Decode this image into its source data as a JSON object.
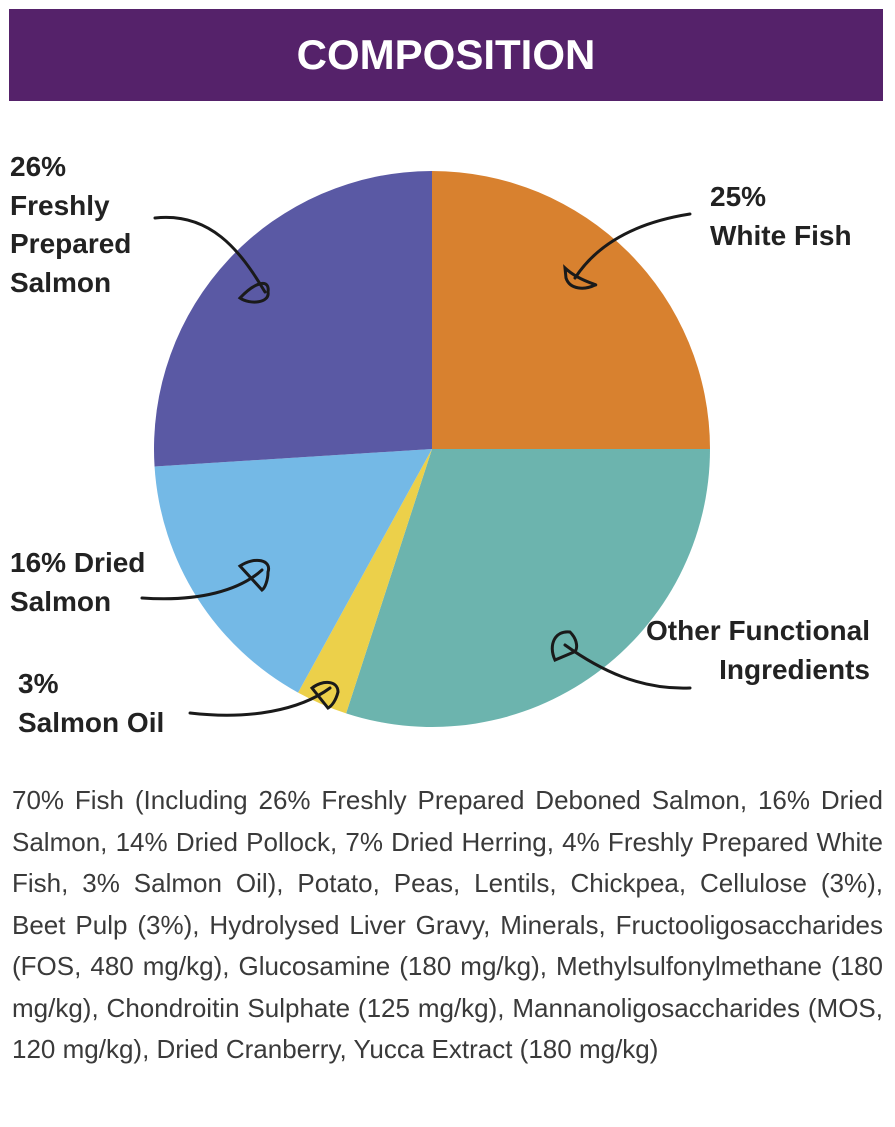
{
  "chart_data": {
    "type": "pie",
    "title": "COMPOSITION",
    "categories": [
      "White Fish",
      "Other Functional Ingredients",
      "Salmon Oil",
      "Dried Salmon",
      "Freshly Prepared Salmon"
    ],
    "values": [
      25,
      30,
      3,
      16,
      26
    ],
    "value_labels": [
      "25%",
      null,
      "3%",
      "16%",
      "26%"
    ],
    "colors": [
      "#d8812f",
      "#6cb4ae",
      "#ecd04a",
      "#74b9e6",
      "#5a59a4"
    ]
  },
  "composition_text": "70% Fish (Including 26% Freshly Prepared Deboned Salmon, 16% Dried Salmon, 14% Dried Pollock, 7% Dried Herring, 4% Freshly Prepared White Fish, 3% Salmon Oil), Potato, Peas, Lentils, Chickpea, Cellulose (3%), Beet Pulp (3%), Hydrolysed Liver Gravy, Minerals, Fructooligosaccharides (FOS, 480 mg/kg), Glucosamine (180 mg/kg), Methylsulfonylmethane (180 mg/kg), Chondroitin Sulphate (125 mg/kg), Mannanoligosaccharides (MOS, 120 mg/kg), Dried Cranberry, Yucca Extract (180 mg/kg)"
}
